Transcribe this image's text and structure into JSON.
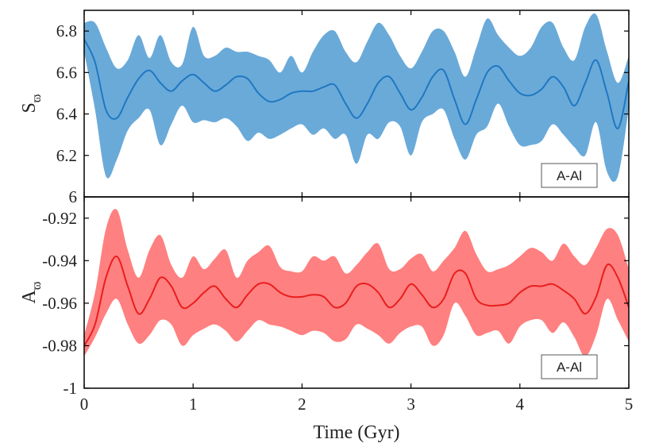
{
  "chart_data": [
    {
      "type": "line",
      "panel": "top",
      "ylabel": "S",
      "ylabel_subscript": "ϖ",
      "xlabel": "",
      "xlim": [
        0,
        5
      ],
      "ylim": [
        6.0,
        6.9
      ],
      "yticks": [
        6,
        6.2,
        6.4,
        6.6,
        6.8
      ],
      "ytick_labels": [
        "6",
        "6.2",
        "6.4",
        "6.6",
        "6.8"
      ],
      "xticks": [
        0,
        1,
        2,
        3,
        4,
        5
      ],
      "legend": "A-Al",
      "legend_position": "bottom-right",
      "colors": {
        "line": "#1f78c1",
        "band": "#6aaad9"
      },
      "x": [
        0,
        0.1,
        0.2,
        0.3,
        0.4,
        0.5,
        0.6,
        0.7,
        0.8,
        0.9,
        1.0,
        1.1,
        1.2,
        1.3,
        1.4,
        1.5,
        1.6,
        1.7,
        1.8,
        1.9,
        2.0,
        2.1,
        2.2,
        2.3,
        2.4,
        2.5,
        2.6,
        2.7,
        2.8,
        2.9,
        3.0,
        3.1,
        3.2,
        3.3,
        3.4,
        3.5,
        3.6,
        3.7,
        3.8,
        3.9,
        4.0,
        4.1,
        4.2,
        4.3,
        4.4,
        4.5,
        4.6,
        4.7,
        4.8,
        4.9,
        5.0
      ],
      "series": [
        {
          "name": "mean",
          "values": [
            6.76,
            6.65,
            6.42,
            6.38,
            6.48,
            6.57,
            6.61,
            6.55,
            6.51,
            6.56,
            6.59,
            6.55,
            6.51,
            6.54,
            6.58,
            6.57,
            6.5,
            6.46,
            6.47,
            6.5,
            6.51,
            6.51,
            6.53,
            6.54,
            6.45,
            6.38,
            6.45,
            6.55,
            6.58,
            6.5,
            6.42,
            6.48,
            6.58,
            6.61,
            6.47,
            6.35,
            6.47,
            6.6,
            6.63,
            6.56,
            6.5,
            6.49,
            6.52,
            6.58,
            6.53,
            6.44,
            6.55,
            6.66,
            6.5,
            6.33,
            6.56
          ]
        },
        {
          "name": "upper",
          "values": [
            6.84,
            6.84,
            6.72,
            6.62,
            6.66,
            6.78,
            6.67,
            6.78,
            6.65,
            6.64,
            6.82,
            6.68,
            6.68,
            6.72,
            6.7,
            6.7,
            6.68,
            6.66,
            6.6,
            6.68,
            6.6,
            6.7,
            6.78,
            6.8,
            6.7,
            6.65,
            6.75,
            6.84,
            6.78,
            6.68,
            6.62,
            6.7,
            6.8,
            6.8,
            6.7,
            6.58,
            6.72,
            6.86,
            6.78,
            6.72,
            6.68,
            6.72,
            6.82,
            6.84,
            6.72,
            6.66,
            6.82,
            6.88,
            6.7,
            6.55,
            6.68
          ]
        },
        {
          "name": "lower",
          "values": [
            6.7,
            6.42,
            6.1,
            6.18,
            6.32,
            6.38,
            6.42,
            6.25,
            6.35,
            6.44,
            6.36,
            6.37,
            6.36,
            6.38,
            6.34,
            6.27,
            6.31,
            6.28,
            6.3,
            6.33,
            6.35,
            6.3,
            6.33,
            6.28,
            6.3,
            6.16,
            6.3,
            6.28,
            6.36,
            6.34,
            6.2,
            6.36,
            6.4,
            6.42,
            6.28,
            6.18,
            6.3,
            6.34,
            6.45,
            6.34,
            6.25,
            6.25,
            6.27,
            6.35,
            6.3,
            6.24,
            6.2,
            6.36,
            6.12,
            6.1,
            6.43
          ]
        }
      ]
    },
    {
      "type": "line",
      "panel": "bottom",
      "ylabel": "A",
      "ylabel_subscript": "ϖ",
      "xlabel": "Time (Gyr)",
      "xlim": [
        0,
        5
      ],
      "ylim": [
        -1.0,
        -0.91
      ],
      "yticks": [
        -1,
        -0.98,
        -0.96,
        -0.94,
        -0.92
      ],
      "ytick_labels": [
        "-1",
        "-0.98",
        "-0.96",
        "-0.94",
        "-0.92"
      ],
      "xticks": [
        0,
        1,
        2,
        3,
        4,
        5
      ],
      "xtick_labels": [
        "0",
        "1",
        "2",
        "3",
        "4",
        "5"
      ],
      "legend": "A-Al",
      "legend_position": "bottom-right",
      "colors": {
        "line": "#e81e1e",
        "band": "#ff8080"
      },
      "x": [
        0,
        0.1,
        0.2,
        0.3,
        0.4,
        0.5,
        0.6,
        0.7,
        0.8,
        0.9,
        1.0,
        1.1,
        1.2,
        1.3,
        1.4,
        1.5,
        1.6,
        1.7,
        1.8,
        1.9,
        2.0,
        2.1,
        2.2,
        2.3,
        2.4,
        2.5,
        2.6,
        2.7,
        2.8,
        2.9,
        3.0,
        3.1,
        3.2,
        3.3,
        3.4,
        3.5,
        3.6,
        3.7,
        3.8,
        3.9,
        4.0,
        4.1,
        4.2,
        4.3,
        4.4,
        4.5,
        4.6,
        4.7,
        4.8,
        4.9,
        5.0
      ],
      "series": [
        {
          "name": "mean",
          "values": [
            -0.98,
            -0.97,
            -0.948,
            -0.938,
            -0.952,
            -0.965,
            -0.958,
            -0.948,
            -0.952,
            -0.962,
            -0.96,
            -0.955,
            -0.952,
            -0.958,
            -0.962,
            -0.956,
            -0.951,
            -0.951,
            -0.955,
            -0.957,
            -0.957,
            -0.956,
            -0.957,
            -0.962,
            -0.96,
            -0.952,
            -0.951,
            -0.955,
            -0.962,
            -0.958,
            -0.951,
            -0.956,
            -0.962,
            -0.958,
            -0.946,
            -0.946,
            -0.958,
            -0.961,
            -0.961,
            -0.96,
            -0.955,
            -0.952,
            -0.952,
            -0.951,
            -0.954,
            -0.958,
            -0.965,
            -0.957,
            -0.942,
            -0.948,
            -0.962
          ]
        },
        {
          "name": "upper",
          "values": [
            -0.975,
            -0.955,
            -0.925,
            -0.916,
            -0.935,
            -0.948,
            -0.935,
            -0.928,
            -0.942,
            -0.948,
            -0.938,
            -0.944,
            -0.939,
            -0.935,
            -0.948,
            -0.94,
            -0.936,
            -0.933,
            -0.943,
            -0.945,
            -0.945,
            -0.938,
            -0.94,
            -0.938,
            -0.946,
            -0.942,
            -0.936,
            -0.932,
            -0.944,
            -0.944,
            -0.939,
            -0.937,
            -0.945,
            -0.94,
            -0.934,
            -0.926,
            -0.937,
            -0.945,
            -0.944,
            -0.942,
            -0.938,
            -0.934,
            -0.936,
            -0.94,
            -0.932,
            -0.938,
            -0.942,
            -0.934,
            -0.925,
            -0.928,
            -0.944
          ]
        },
        {
          "name": "lower",
          "values": [
            -0.985,
            -0.976,
            -0.965,
            -0.958,
            -0.97,
            -0.979,
            -0.975,
            -0.968,
            -0.97,
            -0.98,
            -0.975,
            -0.972,
            -0.97,
            -0.973,
            -0.978,
            -0.973,
            -0.968,
            -0.97,
            -0.971,
            -0.973,
            -0.975,
            -0.973,
            -0.974,
            -0.978,
            -0.977,
            -0.97,
            -0.972,
            -0.975,
            -0.979,
            -0.974,
            -0.971,
            -0.971,
            -0.98,
            -0.975,
            -0.96,
            -0.966,
            -0.975,
            -0.974,
            -0.973,
            -0.979,
            -0.971,
            -0.968,
            -0.968,
            -0.974,
            -0.969,
            -0.976,
            -0.985,
            -0.975,
            -0.958,
            -0.968,
            -0.978
          ]
        }
      ]
    }
  ]
}
